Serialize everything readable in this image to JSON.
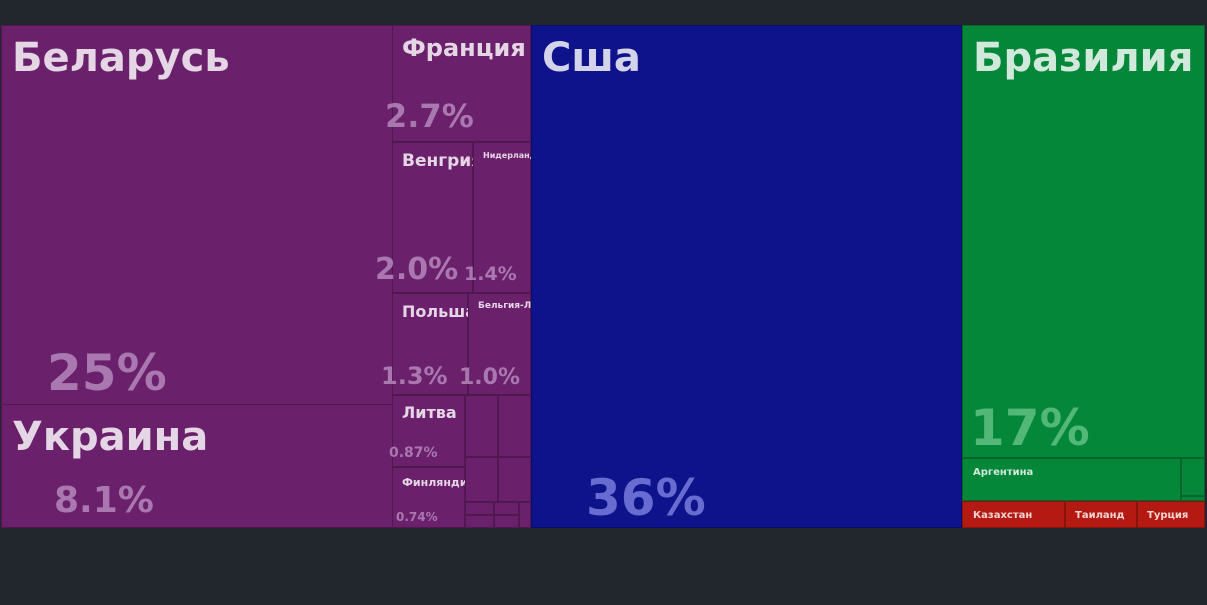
{
  "chart_data": {
    "type": "treemap",
    "unit": "%",
    "colors": {
      "europe": "#6b206b",
      "north_america": "#0e138c",
      "south_america": "#05873a",
      "asia": "#b51a12",
      "background": "#22272e"
    },
    "tiles": [
      {
        "id": "belarus",
        "label": "Беларусь",
        "share": "25%",
        "value": 25,
        "group": "europe"
      },
      {
        "id": "ukraine",
        "label": "Украина",
        "share": "8.1%",
        "value": 8.1,
        "group": "europe"
      },
      {
        "id": "france",
        "label": "Франция",
        "share": "2.7%",
        "value": 2.7,
        "group": "europe"
      },
      {
        "id": "hungary",
        "label": "Венгрия",
        "share": "2.0%",
        "value": 2.0,
        "group": "europe"
      },
      {
        "id": "netherlands",
        "label": "Нидерланды",
        "share": "1.4%",
        "value": 1.4,
        "group": "europe"
      },
      {
        "id": "poland",
        "label": "Польша",
        "share": "1.3%",
        "value": 1.3,
        "group": "europe"
      },
      {
        "id": "belgium",
        "label": "Бельгия-Люксембург",
        "share": "1.0%",
        "value": 1.0,
        "group": "europe"
      },
      {
        "id": "lithuania",
        "label": "Литва",
        "share": "0.87%",
        "value": 0.87,
        "group": "europe"
      },
      {
        "id": "finland",
        "label": "Финляндия",
        "share": "0.74%",
        "value": 0.74,
        "group": "europe"
      },
      {
        "id": "eu_s1",
        "label": "",
        "share": "",
        "value": 0.6,
        "group": "europe"
      },
      {
        "id": "eu_s2",
        "label": "",
        "share": "",
        "value": 0.6,
        "group": "europe"
      },
      {
        "id": "eu_s3",
        "label": "",
        "share": "",
        "value": 0.45,
        "group": "europe"
      },
      {
        "id": "eu_s4",
        "label": "",
        "share": "",
        "value": 0.45,
        "group": "europe"
      },
      {
        "id": "eu_s5",
        "label": "",
        "share": "",
        "value": 0.12,
        "group": "europe"
      },
      {
        "id": "eu_s6",
        "label": "",
        "share": "",
        "value": 0.12,
        "group": "europe"
      },
      {
        "id": "eu_s7",
        "label": "",
        "share": "",
        "value": 0.12,
        "group": "europe"
      },
      {
        "id": "eu_s8",
        "label": "",
        "share": "",
        "value": 0.12,
        "group": "europe"
      },
      {
        "id": "eu_s9",
        "label": "",
        "share": "",
        "value": 0.1,
        "group": "europe"
      },
      {
        "id": "usa",
        "label": "Сша",
        "share": "36%",
        "value": 36,
        "group": "north_america"
      },
      {
        "id": "brazil",
        "label": "Бразилия",
        "share": "17%",
        "value": 17,
        "group": "south_america"
      },
      {
        "id": "argentina",
        "label": "Аргентина",
        "share": "",
        "value": 2.0,
        "group": "south_america"
      },
      {
        "id": "sa_s1",
        "label": "",
        "share": "",
        "value": 0.2,
        "group": "south_america"
      },
      {
        "id": "sa_s2",
        "label": "",
        "share": "",
        "value": 0.05,
        "group": "south_america"
      },
      {
        "id": "kazakhstan",
        "label": "Казахстан",
        "share": "",
        "value": 1.2,
        "group": "asia"
      },
      {
        "id": "thailand",
        "label": "Таиланд",
        "share": "",
        "value": 0.8,
        "group": "asia"
      },
      {
        "id": "turkey",
        "label": "Турция",
        "share": "",
        "value": 0.8,
        "group": "asia"
      }
    ]
  }
}
